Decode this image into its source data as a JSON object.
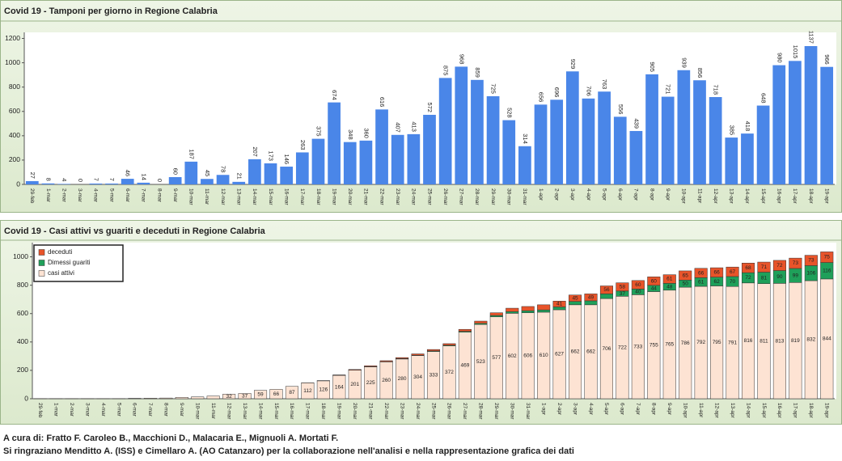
{
  "chart_data": [
    {
      "type": "bar",
      "title": "Covid 19 - Tamponi per giorno in Regione Calabria",
      "categories": [
        "29-feb",
        "1-mar",
        "2-mar",
        "3-mar",
        "4-mar",
        "5-mar",
        "6-mar",
        "7-mar",
        "8-mar",
        "9-mar",
        "10-mar",
        "11-mar",
        "12-mar",
        "13-mar",
        "14-mar",
        "15-mar",
        "16-mar",
        "17-mar",
        "18-mar",
        "19-mar",
        "20-mar",
        "21-mar",
        "22-mar",
        "23-mar",
        "24-mar",
        "25-mar",
        "26-mar",
        "27-mar",
        "28-mar",
        "29-mar",
        "30-mar",
        "31-mar",
        "1-apr",
        "2-apr",
        "3-apr",
        "4-apr",
        "5-apr",
        "6-apr",
        "7-apr",
        "8-apr",
        "9-apr",
        "10-apr",
        "11-apr",
        "12-apr",
        "13-apr",
        "14-apr",
        "15-apr",
        "16-apr",
        "17-apr",
        "18-apr",
        "19-apr"
      ],
      "values": [
        27,
        8,
        4,
        0,
        7,
        7,
        46,
        14,
        0,
        60,
        187,
        45,
        78,
        21,
        207,
        173,
        146,
        263,
        375,
        674,
        348,
        360,
        616,
        407,
        413,
        572,
        875,
        968,
        859,
        725,
        528,
        314,
        656,
        696,
        929,
        706,
        763,
        556,
        439,
        905,
        721,
        939,
        856,
        718,
        385,
        418,
        648,
        980,
        1015,
        1137,
        966
      ],
      "color": "#4a86e8",
      "ylim": [
        0,
        1250
      ],
      "yticks": [
        0,
        200,
        400,
        600,
        800,
        1000,
        1200
      ],
      "grid": false
    },
    {
      "type": "stacked_bar",
      "title": "Covid 19 - Casi attivi vs guariti e deceduti in Regione Calabria",
      "categories": [
        "29-feb",
        "1-mar",
        "2-mar",
        "3-mar",
        "4-mar",
        "5-mar",
        "6-mar",
        "7-mar",
        "8-mar",
        "9-mar",
        "10-mar",
        "11-mar",
        "12-mar",
        "13-mar",
        "14-mar",
        "15-mar",
        "16-mar",
        "17-mar",
        "18-mar",
        "19-mar",
        "20-mar",
        "21-mar",
        "22-mar",
        "23-mar",
        "24-mar",
        "25-mar",
        "26-mar",
        "27-mar",
        "28-mar",
        "29-mar",
        "30-mar",
        "31-mar",
        "1-apr",
        "2-apr",
        "3-apr",
        "4-apr",
        "5-apr",
        "6-apr",
        "7-apr",
        "8-apr",
        "9-apr",
        "10-apr",
        "11-apr",
        "12-apr",
        "13-apr",
        "14-apr",
        "15-apr",
        "16-apr",
        "17-apr",
        "18-apr",
        "19-apr"
      ],
      "series": [
        {
          "name": "casi attivi",
          "color": "#fde3d3",
          "values": [
            1,
            1,
            1,
            1,
            1,
            1,
            3,
            4,
            5,
            10,
            13,
            19,
            32,
            37,
            59,
            66,
            87,
            112,
            126,
            164,
            201,
            225,
            260,
            280,
            304,
            333,
            372,
            469,
            523,
            577,
            602,
            606,
            610,
            627,
            662,
            662,
            706,
            722,
            733,
            755,
            765,
            786,
            792,
            795,
            791,
            816,
            811,
            813,
            819,
            832,
            844
          ],
          "value_labels": [
            null,
            null,
            null,
            null,
            null,
            null,
            null,
            null,
            null,
            null,
            null,
            null,
            32,
            37,
            59,
            66,
            87,
            112,
            126,
            164,
            201,
            225,
            260,
            280,
            304,
            333,
            372,
            469,
            523,
            577,
            602,
            606,
            610,
            627,
            662,
            662,
            706,
            722,
            733,
            755,
            765,
            786,
            792,
            795,
            791,
            816,
            811,
            813,
            819,
            832,
            844
          ]
        },
        {
          "name": "Dimessi guariti",
          "color": "#1fa05a",
          "values": [
            0,
            0,
            0,
            0,
            0,
            0,
            0,
            0,
            0,
            0,
            0,
            0,
            0,
            0,
            0,
            0,
            0,
            0,
            0,
            1,
            1,
            2,
            2,
            3,
            3,
            4,
            5,
            6,
            8,
            10,
            12,
            14,
            16,
            20,
            24,
            28,
            33,
            37,
            40,
            44,
            48,
            50,
            61,
            62,
            70,
            72,
            81,
            90,
            99,
            106,
            116
          ],
          "value_labels": [
            null,
            null,
            null,
            null,
            null,
            null,
            null,
            null,
            null,
            null,
            null,
            null,
            null,
            null,
            null,
            null,
            null,
            null,
            null,
            null,
            null,
            null,
            null,
            null,
            null,
            null,
            null,
            null,
            null,
            null,
            null,
            null,
            null,
            null,
            null,
            null,
            null,
            37,
            40,
            44,
            48,
            50,
            61,
            62,
            70,
            72,
            81,
            90,
            99,
            106,
            116
          ]
        },
        {
          "name": "deceduti",
          "color": "#e8542a",
          "values": [
            0,
            0,
            0,
            0,
            0,
            0,
            0,
            0,
            0,
            0,
            0,
            0,
            0,
            0,
            0,
            0,
            0,
            1,
            2,
            3,
            4,
            5,
            6,
            7,
            9,
            10,
            11,
            14,
            16,
            19,
            24,
            30,
            36,
            41,
            45,
            49,
            56,
            58,
            60,
            60,
            61,
            65,
            66,
            66,
            67,
            68,
            71,
            72,
            73,
            73,
            75
          ],
          "value_labels": [
            null,
            null,
            null,
            null,
            null,
            null,
            null,
            null,
            null,
            null,
            null,
            null,
            null,
            null,
            null,
            null,
            null,
            null,
            null,
            null,
            null,
            null,
            null,
            null,
            null,
            null,
            null,
            null,
            null,
            null,
            null,
            null,
            null,
            41,
            45,
            49,
            56,
            58,
            60,
            60,
            61,
            65,
            66,
            66,
            67,
            68,
            71,
            72,
            73,
            73,
            75
          ]
        }
      ],
      "ylim": [
        0,
        1100
      ],
      "yticks": [
        0,
        200,
        400,
        600,
        800,
        1000
      ],
      "grid": false,
      "legend": "top-left"
    }
  ],
  "footer": {
    "line1": "A cura di: Fratto F. Caroleo B., Macchioni D., Malacaria E., Mignuoli A. Mortati F.",
    "line2": "Si ringraziano Menditto A. (ISS) e Cimellaro A. (AO Catanzaro) per la collaborazione nell'analisi e nella rappresentazione grafica dei dati"
  }
}
